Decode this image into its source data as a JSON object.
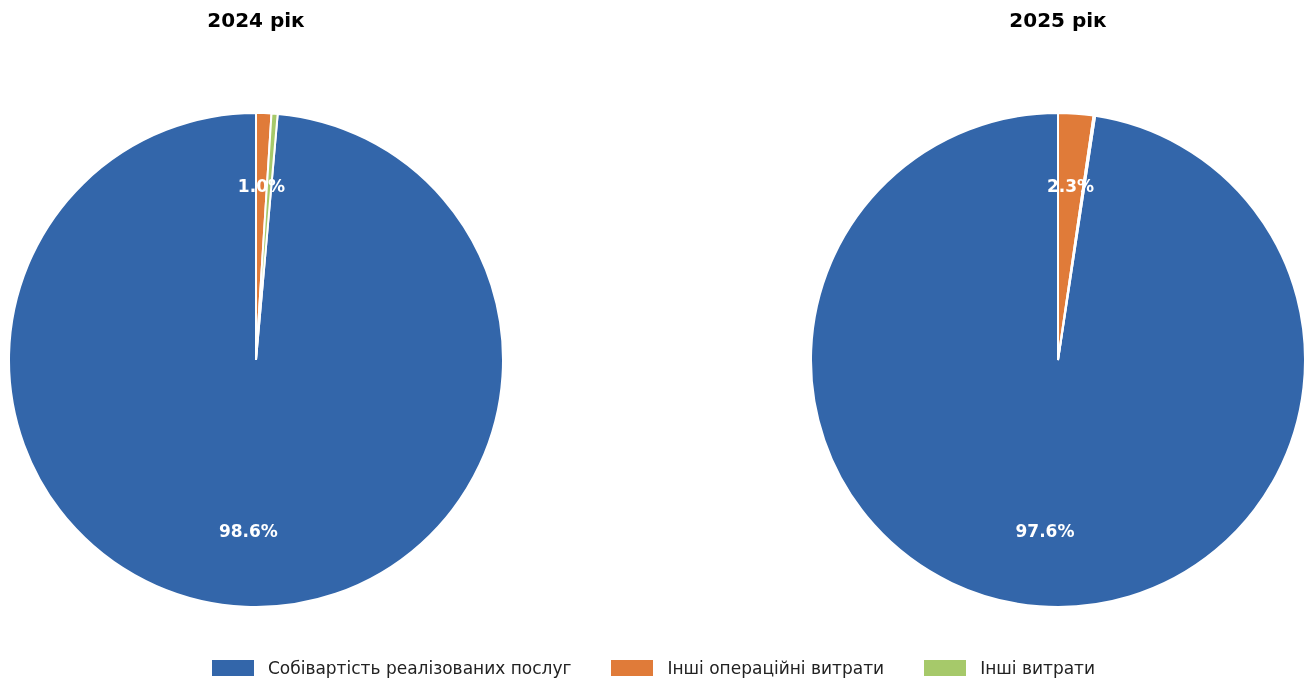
{
  "chart_data": [
    {
      "type": "pie",
      "title": "2024 рік",
      "categories": [
        "Собівартість реалізованих послуг",
        "Інші операційні витрати",
        "Інші витрати"
      ],
      "values": [
        98.6,
        1.0,
        0.4
      ],
      "colors": [
        "#3366aa",
        "#e07b39",
        "#a6c96a"
      ],
      "value_labels": [
        "98.6%",
        "1.0%",
        null
      ],
      "legend": "bottom"
    },
    {
      "type": "pie",
      "title": "2025 рік",
      "categories": [
        null,
        null,
        null
      ],
      "values": [
        97.6,
        2.3,
        0.1
      ],
      "colors": [
        "#3366aa",
        "#e07b39",
        "#a6c96a"
      ],
      "value_labels": [
        "97.6%",
        "2.3%",
        null
      ]
    }
  ]
}
